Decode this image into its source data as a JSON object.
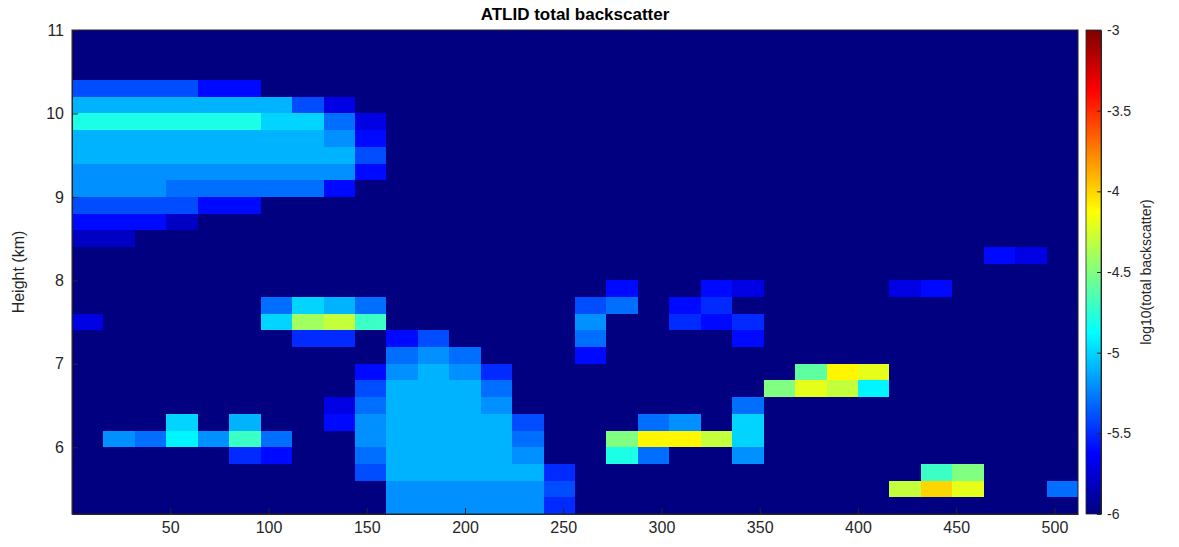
{
  "chart_data": {
    "type": "heatmap",
    "title": "ATLID total backscatter",
    "ylabel": "Height (km)",
    "xlim": [
      0,
      512
    ],
    "ylim": [
      5.2,
      11
    ],
    "xticks": [
      50,
      100,
      150,
      200,
      250,
      300,
      350,
      400,
      450,
      500
    ],
    "yticks": [
      6,
      7,
      8,
      9,
      10,
      11
    ],
    "x": [
      8,
      24,
      40,
      56,
      72,
      88,
      104,
      120,
      136,
      152,
      168,
      184,
      200,
      216,
      232,
      248,
      264,
      280,
      296,
      312,
      328,
      344,
      360,
      376,
      392,
      408,
      424,
      440,
      456,
      472,
      488,
      504
    ],
    "y": [
      10.9,
      10.7,
      10.5,
      10.3,
      10.1,
      9.9,
      9.7,
      9.5,
      9.3,
      9.1,
      8.9,
      8.7,
      8.5,
      8.3,
      8.1,
      7.9,
      7.7,
      7.5,
      7.3,
      7.1,
      6.9,
      6.7,
      6.5,
      6.3,
      6.1,
      5.9,
      5.7,
      5.5,
      5.3
    ],
    "z": [
      [
        -6,
        -6,
        -6,
        -6,
        -6,
        -6,
        -6,
        -6,
        -6,
        -6,
        -6,
        -6,
        -6,
        -6,
        -6,
        -6,
        -6,
        -6,
        -6,
        -6,
        -6,
        -6,
        -6,
        -6,
        -6,
        -6,
        -6,
        -6,
        -6,
        -6,
        -6,
        -6
      ],
      [
        -6,
        -6,
        -6,
        -6,
        -6,
        -6,
        -6,
        -6,
        -6,
        -6,
        -6,
        -6,
        -6,
        -6,
        -6,
        -6,
        -6,
        -6,
        -6,
        -6,
        -6,
        -6,
        -6,
        -6,
        -6,
        -6,
        -6,
        -6,
        -6,
        -6,
        -6,
        -6
      ],
      [
        -6,
        -6,
        -6,
        -6,
        -6,
        -6,
        -6,
        -6,
        -6,
        -6,
        -6,
        -6,
        -6,
        -6,
        -6,
        -6,
        -6,
        -6,
        -6,
        -6,
        -6,
        -6,
        -6,
        -6,
        -6,
        -6,
        -6,
        -6,
        -6,
        -6,
        -6,
        -6
      ],
      [
        -5.4,
        -5.4,
        -5.4,
        -5.4,
        -5.6,
        -5.6,
        -6,
        -6,
        -6,
        -6,
        -6,
        -6,
        -6,
        -6,
        -6,
        -6,
        -6,
        -6,
        -6,
        -6,
        -6,
        -6,
        -6,
        -6,
        -6,
        -6,
        -6,
        -6,
        -6,
        -6,
        -6,
        -6
      ],
      [
        -5.1,
        -5.1,
        -5.1,
        -5.1,
        -5.1,
        -5.1,
        -5.1,
        -5.4,
        -5.7,
        -6,
        -6,
        -6,
        -6,
        -6,
        -6,
        -6,
        -6,
        -6,
        -6,
        -6,
        -6,
        -6,
        -6,
        -6,
        -6,
        -6,
        -6,
        -6,
        -6,
        -6,
        -6,
        -6
      ],
      [
        -4.8,
        -4.8,
        -4.8,
        -4.8,
        -4.8,
        -4.8,
        -5,
        -5,
        -5.3,
        -5.7,
        -6,
        -6,
        -6,
        -6,
        -6,
        -6,
        -6,
        -6,
        -6,
        -6,
        -6,
        -6,
        -6,
        -6,
        -6,
        -6,
        -6,
        -6,
        -6,
        -6,
        -6,
        -6
      ],
      [
        -5.1,
        -5.1,
        -5.1,
        -5.1,
        -5.1,
        -5.1,
        -5.1,
        -5.1,
        -5.2,
        -5.6,
        -6,
        -6,
        -6,
        -6,
        -6,
        -6,
        -6,
        -6,
        -6,
        -6,
        -6,
        -6,
        -6,
        -6,
        -6,
        -6,
        -6,
        -6,
        -6,
        -6,
        -6,
        -6
      ],
      [
        -5.1,
        -5.1,
        -5.1,
        -5.1,
        -5.1,
        -5.1,
        -5.1,
        -5.1,
        -5.1,
        -5.4,
        -6,
        -6,
        -6,
        -6,
        -6,
        -6,
        -6,
        -6,
        -6,
        -6,
        -6,
        -6,
        -6,
        -6,
        -6,
        -6,
        -6,
        -6,
        -6,
        -6,
        -6,
        -6
      ],
      [
        -5.2,
        -5.2,
        -5.2,
        -5.2,
        -5.2,
        -5.2,
        -5.2,
        -5.2,
        -5.2,
        -5.6,
        -6,
        -6,
        -6,
        -6,
        -6,
        -6,
        -6,
        -6,
        -6,
        -6,
        -6,
        -6,
        -6,
        -6,
        -6,
        -6,
        -6,
        -6,
        -6,
        -6,
        -6,
        -6
      ],
      [
        -5.2,
        -5.2,
        -5.2,
        -5.3,
        -5.3,
        -5.3,
        -5.3,
        -5.3,
        -5.6,
        -6,
        -6,
        -6,
        -6,
        -6,
        -6,
        -6,
        -6,
        -6,
        -6,
        -6,
        -6,
        -6,
        -6,
        -6,
        -6,
        -6,
        -6,
        -6,
        -6,
        -6,
        -6,
        -6
      ],
      [
        -5.4,
        -5.4,
        -5.4,
        -5.4,
        -5.6,
        -5.6,
        -6,
        -6,
        -6,
        -6,
        -6,
        -6,
        -6,
        -6,
        -6,
        -6,
        -6,
        -6,
        -6,
        -6,
        -6,
        -6,
        -6,
        -6,
        -6,
        -6,
        -6,
        -6,
        -6,
        -6,
        -6,
        -6
      ],
      [
        -5.6,
        -5.6,
        -5.6,
        -5.8,
        -6,
        -6,
        -6,
        -6,
        -6,
        -6,
        -6,
        -6,
        -6,
        -6,
        -6,
        -6,
        -6,
        -6,
        -6,
        -6,
        -6,
        -6,
        -6,
        -6,
        -6,
        -6,
        -6,
        -6,
        -6,
        -6,
        -6,
        -6
      ],
      [
        -5.8,
        -5.8,
        -6,
        -6,
        -6,
        -6,
        -6,
        -6,
        -6,
        -6,
        -6,
        -6,
        -6,
        -6,
        -6,
        -6,
        -6,
        -6,
        -6,
        -6,
        -6,
        -6,
        -6,
        -6,
        -6,
        -6,
        -6,
        -6,
        -6,
        -6,
        -6,
        -6
      ],
      [
        -6,
        -6,
        -6,
        -6,
        -6,
        -6,
        -6,
        -6,
        -6,
        -6,
        -6,
        -6,
        -6,
        -6,
        -6,
        -6,
        -6,
        -6,
        -6,
        -6,
        -6,
        -6,
        -6,
        -6,
        -6,
        -6,
        -6,
        -6,
        -6,
        -5.6,
        -5.7,
        -6
      ],
      [
        -6,
        -6,
        -6,
        -6,
        -6,
        -6,
        -6,
        -6,
        -6,
        -6,
        -6,
        -6,
        -6,
        -6,
        -6,
        -6,
        -6,
        -6,
        -6,
        -6,
        -6,
        -6,
        -6,
        -6,
        -6,
        -6,
        -6,
        -6,
        -6,
        -6,
        -6,
        -6
      ],
      [
        -6,
        -6,
        -6,
        -6,
        -6,
        -6,
        -6,
        -6,
        -6,
        -6,
        -6,
        -6,
        -6,
        -6,
        -6,
        -6,
        -6,
        -5.6,
        -6,
        -6,
        -5.6,
        -5.7,
        -6,
        -6,
        -6,
        -6,
        -5.7,
        -5.6,
        -6,
        -6,
        -6,
        -6
      ],
      [
        -6,
        -6,
        -6,
        -6,
        -6,
        -6,
        -5.3,
        -5,
        -5.1,
        -5.3,
        -6,
        -6,
        -6,
        -6,
        -6,
        -6,
        -5.4,
        -5.3,
        -6,
        -5.6,
        -5.5,
        -6,
        -6,
        -6,
        -6,
        -6,
        -6,
        -6,
        -6,
        -6,
        -6,
        -6
      ],
      [
        -5.7,
        -6,
        -6,
        -6,
        -6,
        -6,
        -5,
        -4.4,
        -4.3,
        -4.7,
        -6,
        -6,
        -6,
        -6,
        -6,
        -6,
        -5.2,
        -6,
        -6,
        -5.5,
        -5.6,
        -5.5,
        -6,
        -6,
        -6,
        -6,
        -6,
        -6,
        -6,
        -6,
        -6,
        -6
      ],
      [
        -6,
        -6,
        -6,
        -6,
        -6,
        -6,
        -6,
        -5.5,
        -5.5,
        -6,
        -5.6,
        -5.4,
        -6,
        -6,
        -6,
        -6,
        -5.3,
        -6,
        -6,
        -6,
        -6,
        -5.6,
        -6,
        -6,
        -6,
        -6,
        -6,
        -6,
        -6,
        -6,
        -6,
        -6
      ],
      [
        -6,
        -6,
        -6,
        -6,
        -6,
        -6,
        -6,
        -6,
        -6,
        -6,
        -5.3,
        -5.2,
        -5.3,
        -6,
        -6,
        -6,
        -5.6,
        -6,
        -6,
        -6,
        -6,
        -6,
        -6,
        -6,
        -6,
        -6,
        -6,
        -6,
        -6,
        -6,
        -6,
        -6
      ],
      [
        -6,
        -6,
        -6,
        -6,
        -6,
        -6,
        -6,
        -6,
        -6,
        -5.6,
        -5.2,
        -5.1,
        -5.2,
        -5.5,
        -6,
        -6,
        -6,
        -6,
        -6,
        -6,
        -6,
        -6,
        -6,
        -4.6,
        -4.1,
        -4.2,
        -6,
        -6,
        -6,
        -6,
        -6,
        -6
      ],
      [
        -6,
        -6,
        -6,
        -6,
        -6,
        -6,
        -6,
        -6,
        -6,
        -5.4,
        -5.1,
        -5.1,
        -5.1,
        -5.3,
        -6,
        -6,
        -6,
        -6,
        -6,
        -6,
        -6,
        -6,
        -4.5,
        -4.2,
        -4.3,
        -4.9,
        -6,
        -6,
        -6,
        -6,
        -6,
        -6
      ],
      [
        -6,
        -6,
        -6,
        -6,
        -6,
        -6,
        -6,
        -6,
        -5.7,
        -5.3,
        -5.1,
        -5.1,
        -5.1,
        -5.2,
        -6,
        -6,
        -6,
        -6,
        -6,
        -6,
        -6,
        -5.3,
        -6,
        -6,
        -6,
        -6,
        -6,
        -6,
        -6,
        -6,
        -6,
        -6
      ],
      [
        -6,
        -6,
        -6,
        -5,
        -6,
        -5.1,
        -6,
        -6,
        -5.6,
        -5.2,
        -5.1,
        -5.1,
        -5.1,
        -5.1,
        -5.4,
        -6,
        -6,
        -6,
        -5.3,
        -5.2,
        -6,
        -5,
        -6,
        -6,
        -6,
        -6,
        -6,
        -6,
        -6,
        -6,
        -6,
        -6
      ],
      [
        -6,
        -5.2,
        -5.3,
        -4.9,
        -5.2,
        -4.7,
        -5.3,
        -6,
        -6,
        -5.2,
        -5.1,
        -5.1,
        -5.1,
        -5.1,
        -5.3,
        -6,
        -6,
        -4.5,
        -4.1,
        -4.1,
        -4.3,
        -5,
        -6,
        -6,
        -6,
        -6,
        -6,
        -6,
        -6,
        -6,
        -6,
        -6
      ],
      [
        -6,
        -6,
        -6,
        -6,
        -6,
        -5.5,
        -5.6,
        -6,
        -6,
        -5.3,
        -5.1,
        -5.1,
        -5.1,
        -5.1,
        -5.2,
        -6,
        -6,
        -4.8,
        -5.3,
        -6,
        -6,
        -5.2,
        -6,
        -6,
        -6,
        -6,
        -6,
        -6,
        -6,
        -6,
        -6,
        -6
      ],
      [
        -6,
        -6,
        -6,
        -6,
        -6,
        -6,
        -6,
        -6,
        -6,
        -5.4,
        -5.1,
        -5.1,
        -5.1,
        -5.1,
        -5.1,
        -5.5,
        -6,
        -6,
        -6,
        -6,
        -6,
        -6,
        -6,
        -6,
        -6,
        -6,
        -6,
        -4.7,
        -4.5,
        -6,
        -6,
        -6
      ],
      [
        -6,
        -6,
        -6,
        -6,
        -6,
        -6,
        -6,
        -6,
        -6,
        -6,
        -5.2,
        -5.2,
        -5.2,
        -5.2,
        -5.2,
        -5.4,
        -6,
        -6,
        -6,
        -6,
        -6,
        -6,
        -6,
        -6,
        -6,
        -6,
        -4.3,
        -4,
        -4.2,
        -6,
        -6,
        -5.3
      ],
      [
        -6,
        -6,
        -6,
        -6,
        -6,
        -6,
        -6,
        -6,
        -6,
        -6,
        -5.2,
        -5.2,
        -5.2,
        -5.2,
        -5.2,
        -5.5,
        -6,
        -6,
        -6,
        -6,
        -6,
        -6,
        -6,
        -6,
        -6,
        -6,
        -6,
        -6,
        -6,
        -6,
        -6,
        -6
      ]
    ],
    "colorbar": {
      "label": "log10(total backscatter)",
      "lim": [
        -6,
        -3
      ],
      "ticks": [
        -6,
        -5.5,
        -5,
        -4.5,
        -4,
        -3.5,
        -3
      ]
    }
  }
}
